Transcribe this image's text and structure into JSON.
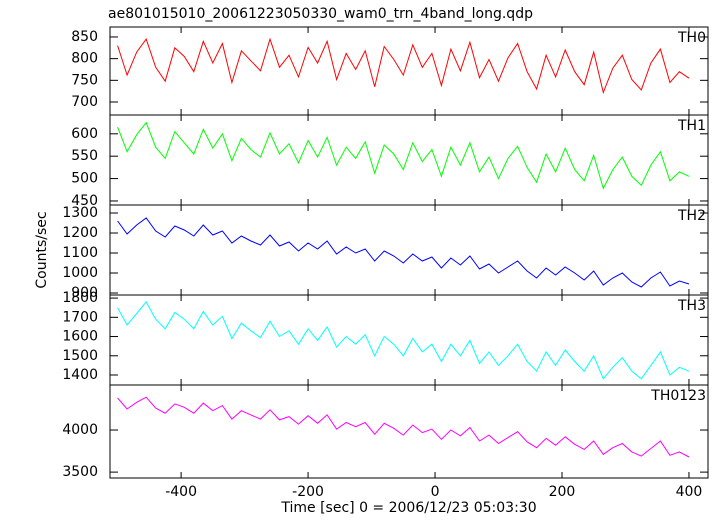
{
  "title": "ae801015010_20061223050330_wam0_trn_4band_long.qdp",
  "xlabel": "Time [sec] 0 = 2006/12/23 05:03:30",
  "ylabel": "Counts/sec",
  "xlim": [
    -512,
    430
  ],
  "xticks": [
    -400,
    -200,
    0,
    200,
    400
  ],
  "chart_data": [
    {
      "type": "line",
      "label": "TH0",
      "color": "#ff0000",
      "ylim": [
        670,
        873
      ],
      "yticks": [
        700,
        750,
        800,
        850
      ],
      "x": [
        -500,
        -485,
        -470,
        -455,
        -440,
        -425,
        -410,
        -395,
        -380,
        -365,
        -350,
        -335,
        -320,
        -305,
        -290,
        -275,
        -260,
        -245,
        -230,
        -215,
        -200,
        -185,
        -170,
        -155,
        -140,
        -125,
        -110,
        -95,
        -80,
        -65,
        -50,
        -35,
        -20,
        -5,
        10,
        25,
        40,
        55,
        70,
        85,
        100,
        115,
        130,
        145,
        160,
        175,
        190,
        205,
        220,
        235,
        250,
        265,
        280,
        295,
        310,
        325,
        340,
        355,
        370,
        385,
        400
      ],
      "values": [
        830,
        762,
        815,
        845,
        780,
        748,
        825,
        805,
        770,
        840,
        790,
        835,
        745,
        818,
        795,
        772,
        845,
        780,
        808,
        758,
        826,
        790,
        840,
        752,
        812,
        775,
        818,
        735,
        828,
        798,
        762,
        832,
        780,
        812,
        738,
        822,
        772,
        838,
        756,
        798,
        748,
        802,
        835,
        770,
        730,
        808,
        758,
        820,
        770,
        740,
        815,
        722,
        778,
        808,
        752,
        728,
        790,
        822,
        745,
        770,
        755
      ]
    },
    {
      "type": "line",
      "label": "TH1",
      "color": "#00ff00",
      "ylim": [
        441,
        642
      ],
      "yticks": [
        450,
        500,
        550,
        600
      ],
      "x": [
        -500,
        -485,
        -470,
        -455,
        -440,
        -425,
        -410,
        -395,
        -380,
        -365,
        -350,
        -335,
        -320,
        -305,
        -290,
        -275,
        -260,
        -245,
        -230,
        -215,
        -200,
        -185,
        -170,
        -155,
        -140,
        -125,
        -110,
        -95,
        -80,
        -65,
        -50,
        -35,
        -20,
        -5,
        10,
        25,
        40,
        55,
        70,
        85,
        100,
        115,
        130,
        145,
        160,
        175,
        190,
        205,
        220,
        235,
        250,
        265,
        280,
        295,
        310,
        325,
        340,
        355,
        370,
        385,
        400
      ],
      "values": [
        615,
        560,
        598,
        625,
        570,
        545,
        605,
        580,
        555,
        610,
        568,
        600,
        540,
        590,
        565,
        548,
        602,
        555,
        578,
        535,
        585,
        548,
        592,
        530,
        570,
        545,
        582,
        512,
        575,
        555,
        520,
        580,
        538,
        565,
        505,
        570,
        530,
        580,
        515,
        548,
        500,
        545,
        572,
        525,
        492,
        555,
        515,
        568,
        520,
        495,
        552,
        478,
        520,
        548,
        505,
        485,
        530,
        560,
        495,
        515,
        505
      ]
    },
    {
      "type": "line",
      "label": "TH2",
      "color": "#0000ff",
      "ylim": [
        890,
        1340
      ],
      "yticks": [
        900,
        1000,
        1100,
        1200,
        1300
      ],
      "x": [
        -500,
        -485,
        -470,
        -455,
        -440,
        -425,
        -410,
        -395,
        -380,
        -365,
        -350,
        -335,
        -320,
        -305,
        -290,
        -275,
        -260,
        -245,
        -230,
        -215,
        -200,
        -185,
        -170,
        -155,
        -140,
        -125,
        -110,
        -95,
        -80,
        -65,
        -50,
        -35,
        -20,
        -5,
        10,
        25,
        40,
        55,
        70,
        85,
        100,
        115,
        130,
        145,
        160,
        175,
        190,
        205,
        220,
        235,
        250,
        265,
        280,
        295,
        310,
        325,
        340,
        355,
        370,
        385,
        400
      ],
      "values": [
        1260,
        1195,
        1240,
        1275,
        1210,
        1180,
        1235,
        1215,
        1185,
        1240,
        1190,
        1210,
        1150,
        1185,
        1160,
        1140,
        1190,
        1135,
        1155,
        1110,
        1150,
        1120,
        1160,
        1095,
        1130,
        1100,
        1120,
        1060,
        1110,
        1085,
        1050,
        1095,
        1060,
        1080,
        1025,
        1075,
        1040,
        1085,
        1020,
        1045,
        1000,
        1030,
        1060,
        1010,
        975,
        1025,
        990,
        1030,
        1000,
        965,
        1010,
        940,
        975,
        1000,
        955,
        930,
        975,
        1005,
        935,
        960,
        945
      ]
    },
    {
      "type": "line",
      "label": "TH3",
      "color": "#00ffff",
      "ylim": [
        1348,
        1816
      ],
      "yticks": [
        1400,
        1500,
        1600,
        1700,
        1800
      ],
      "x": [
        -500,
        -485,
        -470,
        -455,
        -440,
        -425,
        -410,
        -395,
        -380,
        -365,
        -350,
        -335,
        -320,
        -305,
        -290,
        -275,
        -260,
        -245,
        -230,
        -215,
        -200,
        -185,
        -170,
        -155,
        -140,
        -125,
        -110,
        -95,
        -80,
        -65,
        -50,
        -35,
        -20,
        -5,
        10,
        25,
        40,
        55,
        70,
        85,
        100,
        115,
        130,
        145,
        160,
        175,
        190,
        205,
        220,
        235,
        250,
        265,
        280,
        295,
        310,
        325,
        340,
        355,
        370,
        385,
        400
      ],
      "values": [
        1750,
        1660,
        1720,
        1780,
        1690,
        1640,
        1725,
        1690,
        1640,
        1730,
        1660,
        1705,
        1590,
        1670,
        1630,
        1595,
        1680,
        1600,
        1630,
        1560,
        1640,
        1580,
        1650,
        1545,
        1600,
        1560,
        1610,
        1500,
        1600,
        1560,
        1500,
        1590,
        1520,
        1560,
        1470,
        1560,
        1500,
        1580,
        1460,
        1520,
        1450,
        1500,
        1560,
        1470,
        1420,
        1520,
        1450,
        1530,
        1470,
        1420,
        1500,
        1380,
        1440,
        1490,
        1420,
        1380,
        1450,
        1520,
        1400,
        1440,
        1420
      ]
    },
    {
      "type": "line",
      "label": "TH0123",
      "color": "#ff00ff",
      "ylim": [
        3430,
        4535
      ],
      "yticks": [
        3500,
        4000
      ],
      "x": [
        -500,
        -485,
        -470,
        -455,
        -440,
        -425,
        -410,
        -395,
        -380,
        -365,
        -350,
        -335,
        -320,
        -305,
        -290,
        -275,
        -260,
        -245,
        -230,
        -215,
        -200,
        -185,
        -170,
        -155,
        -140,
        -125,
        -110,
        -95,
        -80,
        -65,
        -50,
        -35,
        -20,
        -5,
        10,
        25,
        40,
        55,
        70,
        85,
        100,
        115,
        130,
        145,
        160,
        175,
        190,
        205,
        220,
        235,
        250,
        265,
        280,
        295,
        310,
        325,
        340,
        355,
        370,
        385,
        400
      ],
      "values": [
        4380,
        4250,
        4330,
        4390,
        4260,
        4200,
        4310,
        4270,
        4200,
        4320,
        4230,
        4290,
        4130,
        4230,
        4180,
        4130,
        4240,
        4120,
        4160,
        4070,
        4170,
        4080,
        4180,
        4010,
        4090,
        4040,
        4090,
        3950,
        4080,
        4020,
        3940,
        4060,
        3970,
        4010,
        3890,
        4000,
        3930,
        4030,
        3870,
        3940,
        3840,
        3910,
        3980,
        3860,
        3790,
        3900,
        3820,
        3920,
        3830,
        3770,
        3870,
        3710,
        3790,
        3840,
        3740,
        3690,
        3780,
        3870,
        3700,
        3740,
        3680
      ]
    }
  ]
}
